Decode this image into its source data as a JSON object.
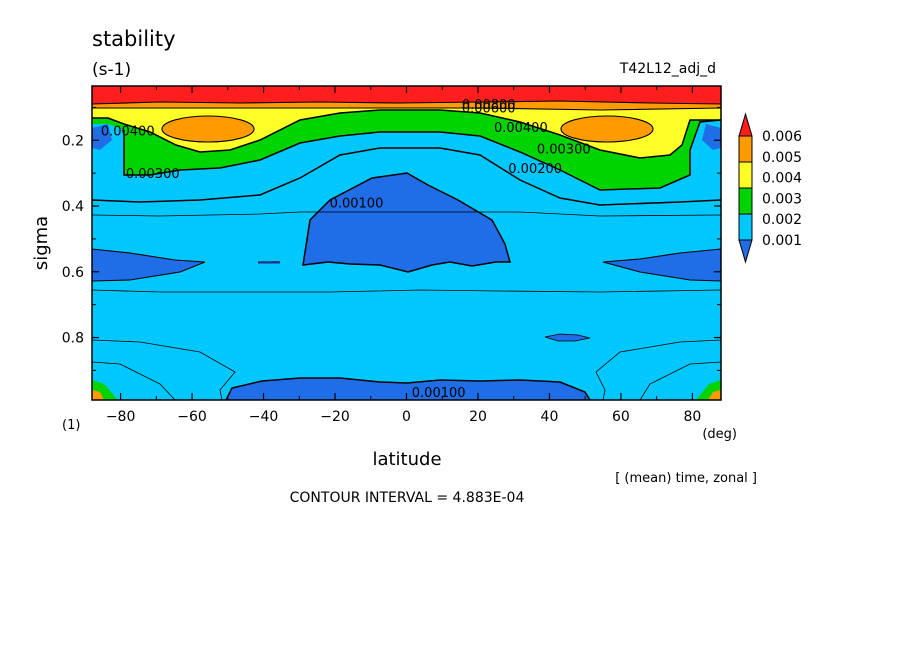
{
  "chart_data": {
    "type": "contour",
    "title": "stability",
    "units": "(s-1)",
    "run_label": "T42L12_adj_d",
    "xlabel": "latitude",
    "xunit": "(deg)",
    "ylabel": "sigma",
    "yunit": "(1)",
    "averaging_note": "[ (mean) time, zonal ]",
    "contour_interval_text": "CONTOUR INTERVAL = 4.883E-04",
    "xlim": [
      -88,
      88
    ],
    "ylim": [
      0.035,
      0.99
    ],
    "y_inverted": true,
    "x_ticks": [
      -80,
      -60,
      -40,
      -20,
      0,
      20,
      40,
      60,
      80
    ],
    "y_ticks": [
      0.2,
      0.4,
      0.6,
      0.8
    ],
    "colorbar": {
      "levels": [
        0.001,
        0.002,
        0.003,
        0.004,
        0.005,
        0.006
      ],
      "labels": [
        "0.006",
        "0.005",
        "0.004",
        "0.003",
        "0.002",
        "0.001"
      ],
      "colors": [
        "#1f6ee8",
        "#00c8ff",
        "#00d400",
        "#ffff28",
        "#ff9a00",
        "#ff1e1e"
      ],
      "extend": "both"
    },
    "contour_labels": [
      {
        "text": "0.00800",
        "lat": 23,
        "sigma": 0.09
      },
      {
        "text": "0.00600",
        "lat": 23,
        "sigma": 0.1
      },
      {
        "text": "0.00400",
        "lat": 32,
        "sigma": 0.16
      },
      {
        "text": "0.00400",
        "lat": -78,
        "sigma": 0.17
      },
      {
        "text": "0.00300",
        "lat": 44,
        "sigma": 0.225
      },
      {
        "text": "0.00300",
        "lat": -71,
        "sigma": 0.3
      },
      {
        "text": "0.00200",
        "lat": 36,
        "sigma": 0.285
      },
      {
        "text": "0.00100",
        "lat": -14,
        "sigma": 0.39
      },
      {
        "text": "0.00100",
        "lat": 9,
        "sigma": 0.965
      }
    ]
  }
}
